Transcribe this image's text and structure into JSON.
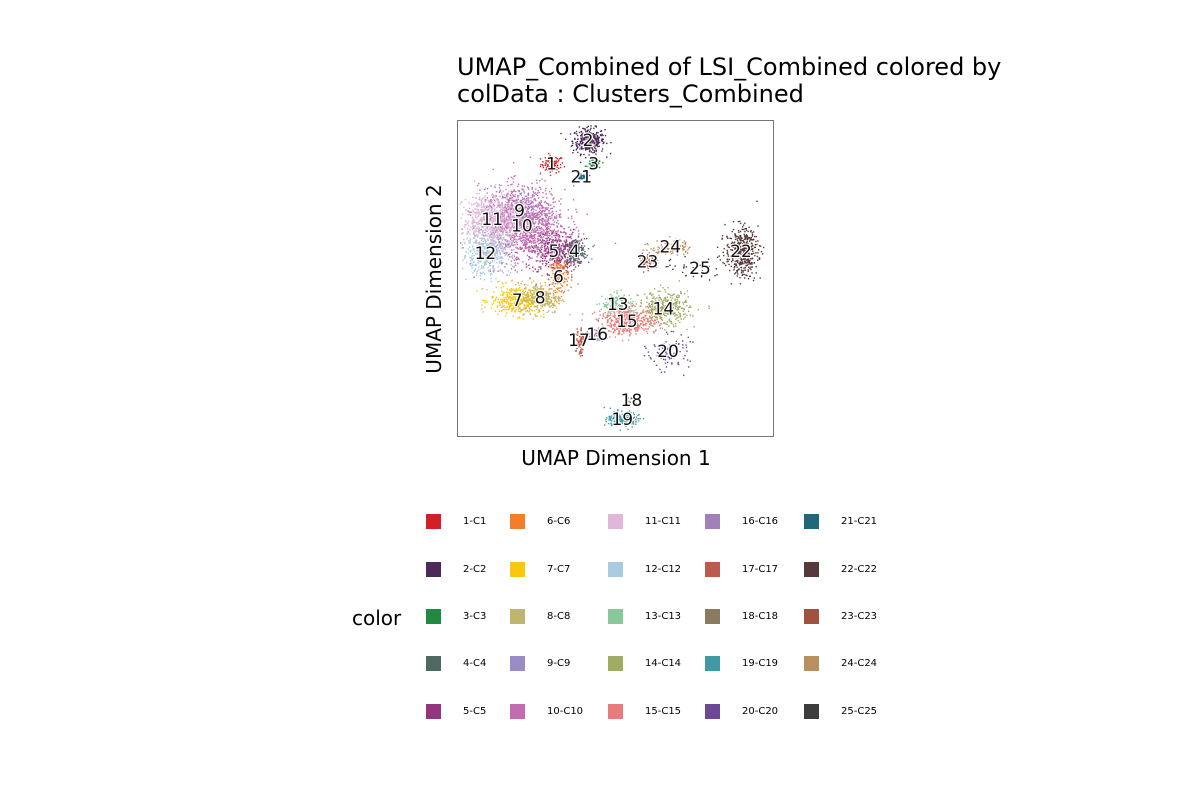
{
  "chart_data": {
    "type": "scatter",
    "title_line1": "UMAP_Combined of LSI_Combined  colored by",
    "title_line2": "colData :  Clusters_Combined",
    "xlabel": "UMAP Dimension 1",
    "ylabel": "UMAP Dimension 2",
    "legend_title": "color",
    "legend_position": "bottom",
    "grid": false,
    "axis_ticks": false,
    "clusters": [
      {
        "id": "1",
        "label": "1-C1",
        "color": "#D51F26",
        "x": 1.3,
        "y": 7.4,
        "sx": 0.25,
        "sy": 0.2,
        "n": 80
      },
      {
        "id": "2",
        "label": "2-C2",
        "color": "#4B2A5A",
        "x": 2.9,
        "y": 8.5,
        "sx": 0.35,
        "sy": 0.3,
        "n": 320
      },
      {
        "id": "3",
        "label": "3-C3",
        "color": "#208A42",
        "x": 3.15,
        "y": 7.4,
        "sx": 0.15,
        "sy": 0.1,
        "n": 60
      },
      {
        "id": "4",
        "label": "4-C4",
        "color": "#4E6862",
        "x": 2.3,
        "y": 3.3,
        "sx": 0.25,
        "sy": 0.3,
        "n": 200
      },
      {
        "id": "5",
        "label": "5-C5",
        "color": "#94357F",
        "x": 1.4,
        "y": 3.3,
        "sx": 0.5,
        "sy": 0.5,
        "n": 380
      },
      {
        "id": "6",
        "label": "6-C6",
        "color": "#F47D2B",
        "x": 1.6,
        "y": 2.1,
        "sx": 0.2,
        "sy": 0.45,
        "n": 150
      },
      {
        "id": "7",
        "label": "7-C7",
        "color": "#F9C80E",
        "x": -0.2,
        "y": 1.0,
        "sx": 0.6,
        "sy": 0.35,
        "n": 420
      },
      {
        "id": "8",
        "label": "8-C8",
        "color": "#BFB56E",
        "x": 0.8,
        "y": 1.1,
        "sx": 0.45,
        "sy": 0.35,
        "n": 240
      },
      {
        "id": "9",
        "label": "9-C9",
        "color": "#998CC4",
        "x": -0.1,
        "y": 5.2,
        "sx": 0.6,
        "sy": 0.55,
        "n": 280
      },
      {
        "id": "10",
        "label": "10-C10",
        "color": "#C26BB0",
        "x": 0.0,
        "y": 4.5,
        "sx": 0.95,
        "sy": 0.9,
        "n": 1200
      },
      {
        "id": "11",
        "label": "11-C11",
        "color": "#DFB7D9",
        "x": -1.3,
        "y": 4.8,
        "sx": 0.65,
        "sy": 0.6,
        "n": 700
      },
      {
        "id": "12",
        "label": "12-C12",
        "color": "#A8CCDF",
        "x": -1.6,
        "y": 3.2,
        "sx": 0.55,
        "sy": 0.5,
        "n": 400
      },
      {
        "id": "13",
        "label": "13-C13",
        "color": "#89C89A",
        "x": 4.2,
        "y": 0.8,
        "sx": 0.35,
        "sy": 0.25,
        "n": 150
      },
      {
        "id": "14",
        "label": "14-C14",
        "color": "#9FAC62",
        "x": 6.2,
        "y": 0.6,
        "sx": 0.55,
        "sy": 0.4,
        "n": 380
      },
      {
        "id": "15",
        "label": "15-C15",
        "color": "#E87C7C",
        "x": 4.6,
        "y": 0.0,
        "sx": 0.65,
        "sy": 0.3,
        "n": 420
      },
      {
        "id": "16",
        "label": "16-C16",
        "color": "#A181B8",
        "x": 3.3,
        "y": -0.6,
        "sx": 0.15,
        "sy": 0.15,
        "n": 40
      },
      {
        "id": "17",
        "label": "17-C17",
        "color": "#BA5B4E",
        "x": 2.5,
        "y": -0.9,
        "sx": 0.1,
        "sy": 0.35,
        "n": 80
      },
      {
        "id": "18",
        "label": "18-C18",
        "color": "#8A7B5F",
        "x": 4.8,
        "y": -3.7,
        "sx": 0.12,
        "sy": 0.12,
        "n": 25
      },
      {
        "id": "19",
        "label": "19-C19",
        "color": "#3F9AA3",
        "x": 4.4,
        "y": -4.6,
        "sx": 0.35,
        "sy": 0.18,
        "n": 150
      },
      {
        "id": "20",
        "label": "20-C20",
        "color": "#6B4997",
        "x": 6.4,
        "y": -1.4,
        "sx": 0.45,
        "sy": 0.4,
        "n": 100
      },
      {
        "id": "21",
        "label": "21-C21",
        "color": "#1F687A",
        "x": 2.6,
        "y": 6.8,
        "sx": 0.12,
        "sy": 0.08,
        "n": 40
      },
      {
        "id": "22",
        "label": "22-C22",
        "color": "#58393B",
        "x": 9.6,
        "y": 3.3,
        "sx": 0.35,
        "sy": 0.55,
        "n": 450
      },
      {
        "id": "23",
        "label": "23-C23",
        "color": "#A0523F",
        "x": 5.5,
        "y": 2.8,
        "sx": 0.22,
        "sy": 0.18,
        "n": 60
      },
      {
        "id": "24",
        "label": "24-C24",
        "color": "#B89060",
        "x": 6.5,
        "y": 3.5,
        "sx": 0.45,
        "sy": 0.2,
        "n": 90
      },
      {
        "id": "25",
        "label": "25-C25",
        "color": "#3D3D3D",
        "x": 7.8,
        "y": 2.5,
        "sx": 0.9,
        "sy": 0.25,
        "n": 40
      }
    ],
    "xlim": [
      -2.8,
      11.0
    ],
    "ylim": [
      -5.4,
      9.4
    ]
  }
}
